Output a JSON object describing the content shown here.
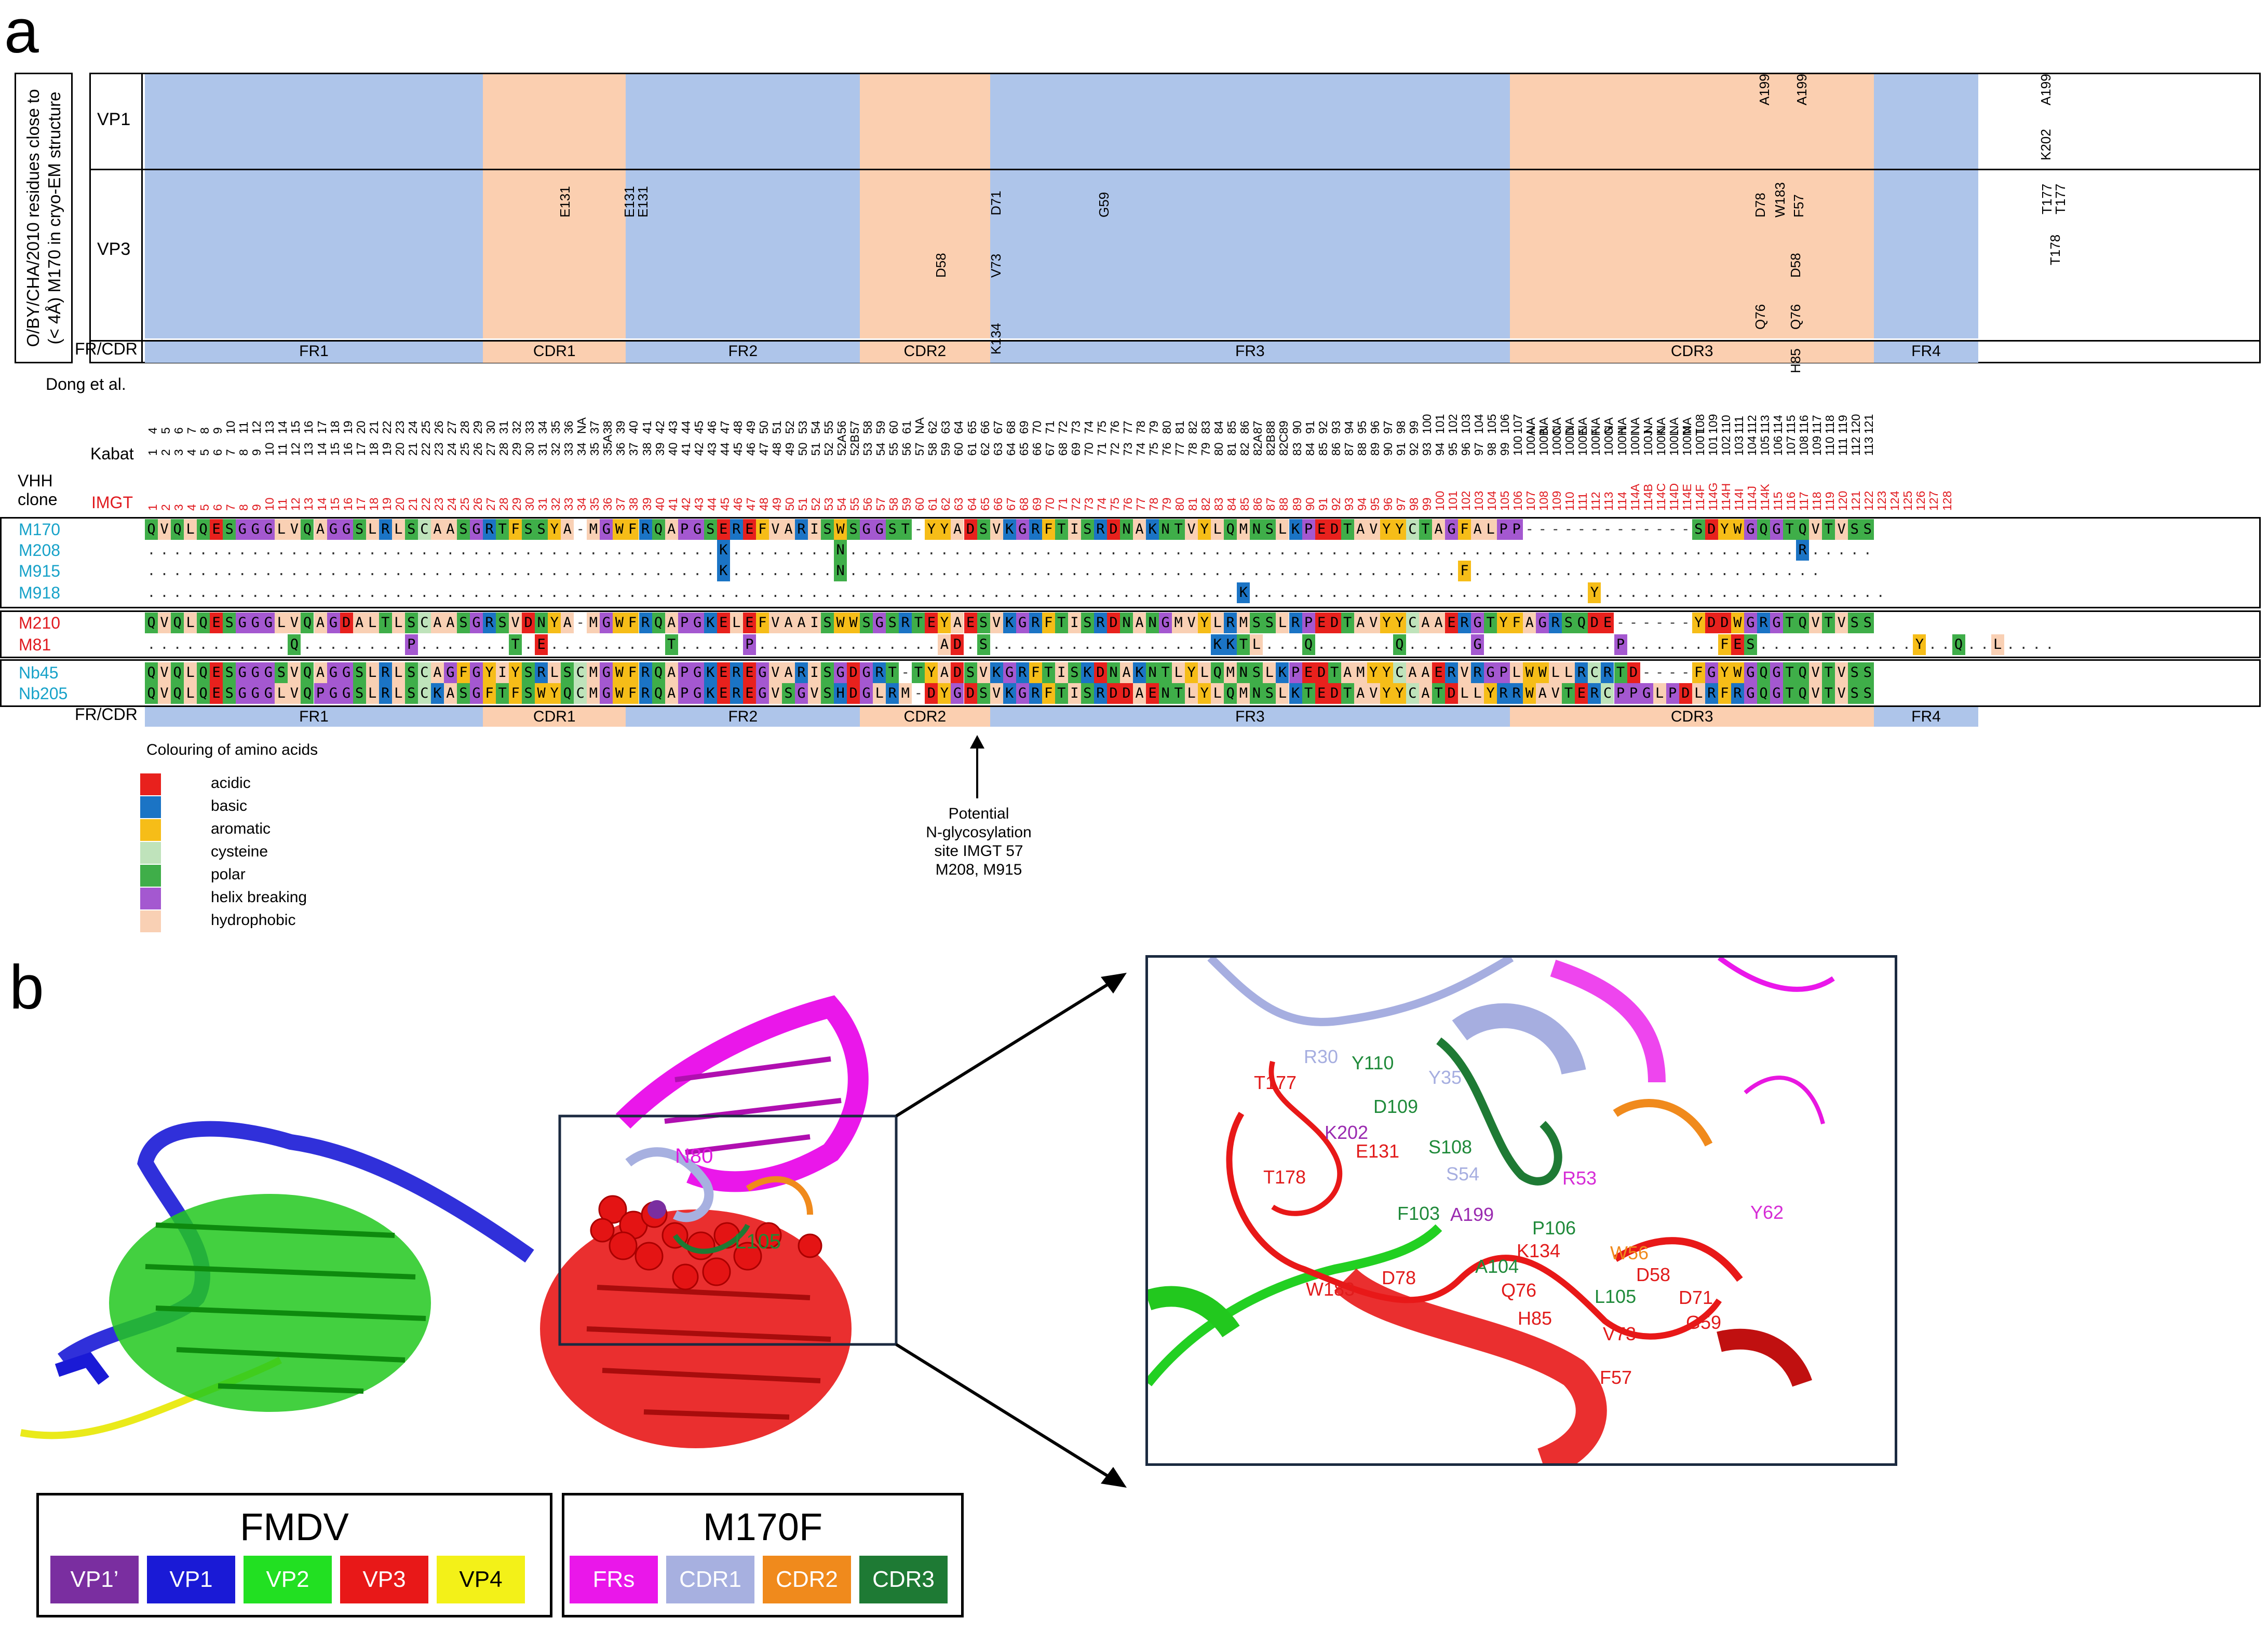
{
  "panel_a_letter": "a",
  "panel_b_letter": "b",
  "side_caption_l1": "O/BY/CHA/2010 residues close to",
  "side_caption_l2": "(< 4Å) M170 in cryo-EM structure",
  "row_labels": {
    "vp1": "VP1",
    "vp3": "VP3",
    "frcdr": "FR/CDR"
  },
  "regions": [
    {
      "name": "FR1",
      "type": "fr"
    },
    {
      "name": "CDR1",
      "type": "cdr"
    },
    {
      "name": "FR2",
      "type": "fr"
    },
    {
      "name": "CDR2",
      "type": "cdr"
    },
    {
      "name": "FR3",
      "type": "fr"
    },
    {
      "name": "CDR3",
      "type": "cdr"
    },
    {
      "name": "FR4",
      "type": "fr"
    }
  ],
  "vp1_residues": [
    "A199",
    "A199",
    "A199",
    "K202"
  ],
  "vp3_residues": [
    "E131",
    "E131",
    "E131",
    "D58",
    "D71",
    "V73",
    "K134",
    "G59",
    "D78",
    "W183",
    "F57",
    "D58",
    "Q76",
    "Q76",
    "H85",
    "T177",
    "T177",
    "T178"
  ],
  "numbering_labels": {
    "dong": "Dong et al.",
    "kabat": "Kabat",
    "vhh": "VHH",
    "clone": "clone",
    "imgt": "IMGT"
  },
  "dong": [
    "4",
    "5",
    "6",
    "7",
    "8",
    "9",
    "10",
    "11",
    "12",
    "13",
    "14",
    "15",
    "16",
    "17",
    "18",
    "19",
    "20",
    "21",
    "22",
    "23",
    "24",
    "25",
    "26",
    "27",
    "28",
    "29",
    "30",
    "31",
    "32",
    "33",
    "34",
    "35",
    "36",
    "NA",
    "37",
    "38",
    "39",
    "40",
    "41",
    "42",
    "43",
    "44",
    "45",
    "46",
    "47",
    "48",
    "49",
    "50",
    "51",
    "52",
    "53",
    "54",
    "55",
    "56",
    "57",
    "58",
    "59",
    "60",
    "61",
    "NA",
    "62",
    "63",
    "64",
    "65",
    "66",
    "67",
    "68",
    "69",
    "70",
    "71",
    "72",
    "73",
    "74",
    "75",
    "76",
    "77",
    "78",
    "79",
    "80",
    "81",
    "82",
    "83",
    "84",
    "85",
    "86",
    "87",
    "88",
    "89",
    "90",
    "91",
    "92",
    "93",
    "94",
    "95",
    "96",
    "97",
    "98",
    "99",
    "100",
    "101",
    "102",
    "103",
    "104",
    "105",
    "106",
    "107",
    "NA",
    "NA",
    "NA",
    "NA",
    "NA",
    "NA",
    "NA",
    "NA",
    "NA",
    "NA",
    "NA",
    "NA",
    "NA",
    "108",
    "109",
    "110",
    "111",
    "112",
    "113",
    "114",
    "115",
    "116",
    "117",
    "118",
    "119",
    "120",
    "121"
  ],
  "kabat": [
    "1",
    "2",
    "3",
    "4",
    "5",
    "6",
    "7",
    "8",
    "9",
    "10",
    "11",
    "12",
    "13",
    "14",
    "15",
    "16",
    "17",
    "18",
    "19",
    "20",
    "21",
    "22",
    "23",
    "24",
    "25",
    "26",
    "27",
    "28",
    "29",
    "30",
    "31",
    "32",
    "33",
    "34",
    "35",
    "35A",
    "36",
    "37",
    "38",
    "39",
    "40",
    "41",
    "42",
    "43",
    "44",
    "45",
    "46",
    "47",
    "48",
    "49",
    "50",
    "51",
    "52",
    "52A",
    "52B",
    "53",
    "54",
    "55",
    "56",
    "57",
    "58",
    "59",
    "60",
    "61",
    "62",
    "63",
    "64",
    "65",
    "66",
    "67",
    "68",
    "69",
    "70",
    "71",
    "72",
    "73",
    "74",
    "75",
    "76",
    "77",
    "78",
    "79",
    "80",
    "81",
    "82",
    "82A",
    "82B",
    "82C",
    "83",
    "84",
    "85",
    "86",
    "87",
    "88",
    "89",
    "90",
    "91",
    "92",
    "93",
    "94",
    "95",
    "96",
    "97",
    "98",
    "99",
    "100",
    "100A",
    "100B",
    "100C",
    "100D",
    "100E",
    "100F",
    "100G",
    "100H",
    "100I",
    "100J",
    "100K",
    "100L",
    "100M",
    "100T",
    "101",
    "102",
    "103",
    "104",
    "105",
    "106",
    "107",
    "108",
    "109",
    "110",
    "111",
    "112",
    "113"
  ],
  "imgt": [
    "1",
    "2",
    "3",
    "4",
    "5",
    "6",
    "7",
    "8",
    "9",
    "10",
    "11",
    "12",
    "13",
    "14",
    "15",
    "16",
    "17",
    "18",
    "19",
    "20",
    "21",
    "22",
    "23",
    "24",
    "25",
    "26",
    "27",
    "28",
    "29",
    "30",
    "31",
    "32",
    "33",
    "34",
    "35",
    "36",
    "37",
    "38",
    "39",
    "40",
    "41",
    "42",
    "43",
    "44",
    "45",
    "46",
    "47",
    "48",
    "49",
    "50",
    "51",
    "52",
    "53",
    "54",
    "55",
    "56",
    "57",
    "58",
    "59",
    "60",
    "61",
    "62",
    "63",
    "64",
    "65",
    "66",
    "67",
    "68",
    "69",
    "70",
    "71",
    "72",
    "73",
    "74",
    "75",
    "76",
    "77",
    "78",
    "79",
    "80",
    "81",
    "82",
    "83",
    "84",
    "85",
    "86",
    "87",
    "88",
    "89",
    "90",
    "91",
    "92",
    "93",
    "94",
    "95",
    "96",
    "97",
    "98",
    "99",
    "100",
    "101",
    "102",
    "103",
    "104",
    "105",
    "106",
    "107",
    "108",
    "109",
    "110",
    "111",
    "112",
    "113",
    "114",
    "114A",
    "114B",
    "114C",
    "114D",
    "114E",
    "114F",
    "114G",
    "114H",
    "114I",
    "114J",
    "114K",
    "115",
    "116",
    "117",
    "118",
    "119",
    "120",
    "121",
    "122",
    "123",
    "124",
    "125",
    "126",
    "127",
    "128"
  ],
  "clones": [
    {
      "name": "M170",
      "color": "#17a2c9",
      "seq": "QVQLQESGGGLVQAGGSLRLSCAASGRTFSSYA-MGWFRQAPGSEREFVARISWSGGST-YYADSVKGRFTISRDNAKNTVYLQMNSLKPEDTAVYYCTAGFALPP-------------SDYWGQGTQVTVSS"
    },
    {
      "name": "M208",
      "color": "#17a2c9",
      "seq": "............................................K........N.........................................................................R....."
    },
    {
      "name": "M915",
      "color": "#17a2c9",
      "seq": "............................................K........N...............................................F..........................."
    },
    {
      "name": "M918",
      "color": "#17a2c9",
      "seq": "....................................................................................K..........................Y......................"
    },
    {
      "name": "M210",
      "color": "#e0191e",
      "seq": "QVQLQESGGGLVQAGDALTLSCAASGRSVDNYA-MGWFRQAPGKELEFVAAISWWSGSRTEYAESVKGRFTISRDNANGMVYLRMSSLRPEDTAVYYCAAERGTYFAGRSQDE------YDDWGRGTQVTVSS"
    },
    {
      "name": "M81",
      "color": "#e0191e",
      "seq": "...........Q........P.......T.E.........T.....P..............AD.S.................KKTL...Q......Q.....G..........P.......FES............Y..Q..L...."
    },
    {
      "name": "Nb45",
      "color": "#17a2c9",
      "seq": "QVQLQESGGGSVQAGGSLRLSCAGFGYIYSRLSCMGWFRQAPGKEREGVARISGDGRT-TYADSVKGRFTISKDNAKNTLYLQMNSLKPEDTAMYYCAAERVRGPLWWLLRCRTD----FGYWGQGTQVTVSS"
    },
    {
      "name": "Nb205",
      "color": "#17a2c9",
      "seq": "QVQLQESGGGLVQPGGSLRLSCKASGFTFSWYQCMGWFRQAPGKEREGVSGVSHDGLRM-DYGDSVKGRFTISRDDAENTLYLQMNSLKTEDTAVYYCATDLLYRRWAVTERCPPGLPDLRFRGQGTQVTVSS"
    }
  ],
  "legend_title": "Colouring of amino acids",
  "legend": [
    {
      "name": "acidic",
      "color": "#e8211d"
    },
    {
      "name": "basic",
      "color": "#1b74c5"
    },
    {
      "name": "aromatic",
      "color": "#f6bd18"
    },
    {
      "name": "cysteine",
      "color": "#bfe3bb"
    },
    {
      "name": "polar",
      "color": "#3fae49"
    },
    {
      "name": "helix breaking",
      "color": "#a458d0"
    },
    {
      "name": "hydrophobic",
      "color": "#f9d0b4"
    }
  ],
  "glyco_note": [
    "Potential",
    "N-glycosylation",
    "site IMGT 57",
    "M208, M915"
  ],
  "structure_labels": {
    "n80": "N80",
    "l105": "L105"
  },
  "zoom_labels": [
    {
      "t": "R30",
      "c": "#a6aee0"
    },
    {
      "t": "Y110",
      "c": "#1f8a3a"
    },
    {
      "t": "Y35",
      "c": "#a6aee0"
    },
    {
      "t": "T177",
      "c": "#e11b1b"
    },
    {
      "t": "D109",
      "c": "#1f8a3a"
    },
    {
      "t": "K202",
      "c": "#9a2bb0"
    },
    {
      "t": "E131",
      "c": "#e11b1b"
    },
    {
      "t": "S108",
      "c": "#1f8a3a"
    },
    {
      "t": "S54",
      "c": "#a6aee0"
    },
    {
      "t": "R53",
      "c": "#d62dd6"
    },
    {
      "t": "T178",
      "c": "#e11b1b"
    },
    {
      "t": "A199",
      "c": "#9a2bb0"
    },
    {
      "t": "Y62",
      "c": "#d62dd6"
    },
    {
      "t": "F103",
      "c": "#1f8a3a"
    },
    {
      "t": "P106",
      "c": "#1f8a3a"
    },
    {
      "t": "K134",
      "c": "#e11b1b"
    },
    {
      "t": "W56",
      "c": "#f08a1c"
    },
    {
      "t": "A104",
      "c": "#1f8a3a"
    },
    {
      "t": "D58",
      "c": "#e11b1b"
    },
    {
      "t": "W183",
      "c": "#e11b1b"
    },
    {
      "t": "D78",
      "c": "#e11b1b"
    },
    {
      "t": "Q76",
      "c": "#e11b1b"
    },
    {
      "t": "D71",
      "c": "#e11b1b"
    },
    {
      "t": "L105",
      "c": "#1f8a3a"
    },
    {
      "t": "H85",
      "c": "#e11b1b"
    },
    {
      "t": "G59",
      "c": "#e11b1b"
    },
    {
      "t": "V73",
      "c": "#e11b1b"
    },
    {
      "t": "F57",
      "c": "#e11b1b"
    }
  ],
  "fmdv_legend": {
    "title": "FMDV",
    "items": [
      {
        "name": "VP1’",
        "bg": "#7a2ea0",
        "fg": "#ffffff"
      },
      {
        "name": "VP1",
        "bg": "#1a1ad6",
        "fg": "#ffffff"
      },
      {
        "name": "VP2",
        "bg": "#22e022",
        "fg": "#ffffff"
      },
      {
        "name": "VP3",
        "bg": "#e81818",
        "fg": "#ffffff"
      },
      {
        "name": "VP4",
        "bg": "#f3f118",
        "fg": "#000000"
      }
    ]
  },
  "m170f_legend": {
    "title": "M170F",
    "items": [
      {
        "name": "FRs",
        "bg": "#ea17ea",
        "fg": "#ffffff"
      },
      {
        "name": "CDR1",
        "bg": "#a7b0e0",
        "fg": "#ffffff"
      },
      {
        "name": "CDR2",
        "bg": "#f08a1c",
        "fg": "#ffffff"
      },
      {
        "name": "CDR3",
        "bg": "#1e7a34",
        "fg": "#ffffff"
      }
    ]
  }
}
